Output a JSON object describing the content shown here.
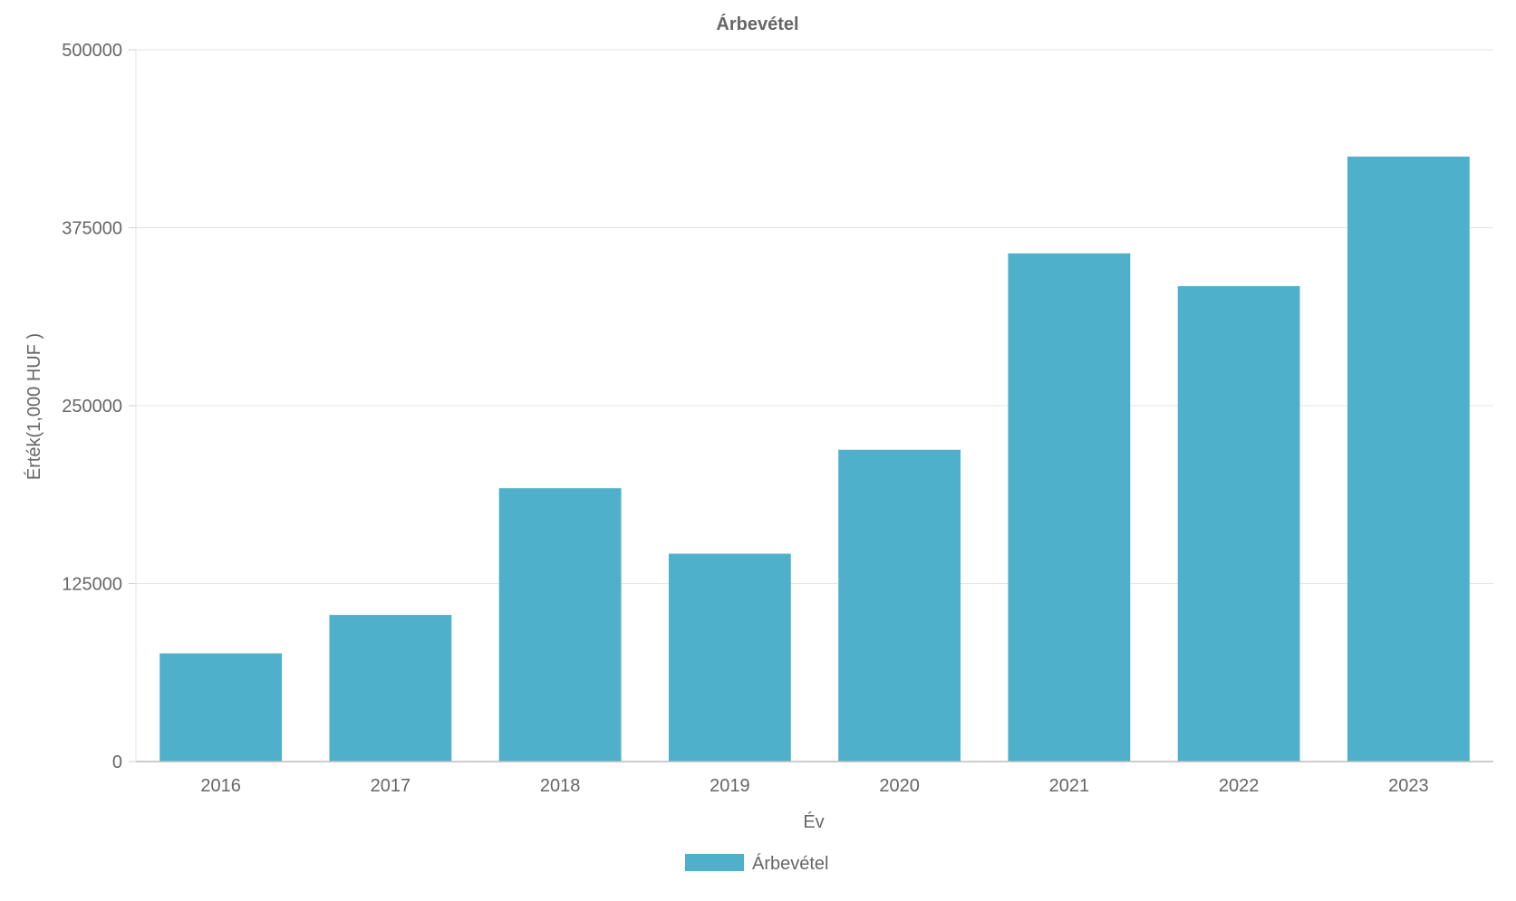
{
  "chart_data": {
    "type": "bar",
    "title": "Árbevétel",
    "xlabel": "Év",
    "ylabel": "Érték(1,000 HUF )",
    "categories": [
      "2016",
      "2017",
      "2018",
      "2019",
      "2020",
      "2021",
      "2022",
      "2023"
    ],
    "series": [
      {
        "name": "Árbevétel",
        "color": "#4eb0cb",
        "values": [
          76000,
          103000,
          192000,
          146000,
          219000,
          357000,
          334000,
          425000
        ]
      }
    ],
    "ylim": [
      0,
      500000
    ],
    "yticks": [
      "0",
      "125000",
      "250000",
      "375000",
      "500000"
    ],
    "grid": true,
    "legend": "bottom-center"
  }
}
